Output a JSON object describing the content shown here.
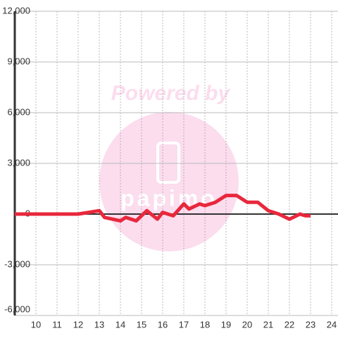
{
  "chart_data": {
    "type": "line",
    "watermark": [
      "Powered by",
      "papimo"
    ],
    "x": [
      9,
      12,
      12.5,
      13,
      13.25,
      14,
      14.25,
      14.75,
      15.25,
      15.75,
      16,
      16.5,
      17,
      17.25,
      17.75,
      18,
      18.5,
      19,
      19.5,
      20,
      20.5,
      21,
      21.5,
      22,
      22.5,
      22.75,
      23
    ],
    "series": [
      {
        "color": "#e8283c",
        "values": [
          0,
          0,
          100,
          200,
          -200,
          -400,
          -200,
          -400,
          200,
          -300,
          100,
          -100,
          600,
          300,
          600,
          500,
          700,
          1100,
          1100,
          700,
          700,
          200,
          0,
          -300,
          0,
          -100,
          -100
        ]
      }
    ],
    "xlim": [
      9,
      24.3
    ],
    "xticks": [
      10,
      11,
      12,
      13,
      14,
      15,
      16,
      17,
      18,
      19,
      20,
      21,
      22,
      23,
      24
    ],
    "ylim": [
      -6000,
      12000
    ],
    "yticks": [
      {
        "value": -6000,
        "label": "-6,000"
      },
      {
        "value": -3000,
        "label": "-3,000"
      },
      0,
      {
        "value": 3000,
        "label": "3,000"
      },
      {
        "value": 6000,
        "label": "6,000"
      },
      {
        "value": 9000,
        "label": "9,000"
      },
      {
        "value": 12000,
        "label": "12,000"
      }
    ],
    "grid": true
  }
}
